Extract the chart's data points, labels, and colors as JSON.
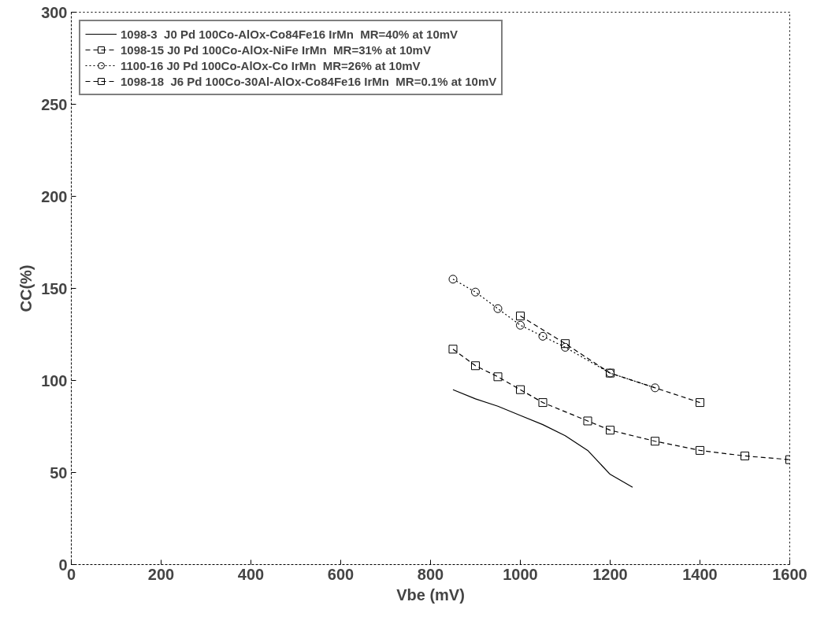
{
  "chart_data": {
    "type": "line",
    "xlabel": "Vbe (mV)",
    "ylabel": "CC(%)",
    "xlim": [
      0,
      1600
    ],
    "ylim": [
      0,
      300
    ],
    "xticks": [
      0,
      200,
      400,
      600,
      800,
      1000,
      1200,
      1400,
      1600
    ],
    "yticks": [
      0,
      50,
      100,
      150,
      200,
      250,
      300
    ],
    "grid": false,
    "legend": "top left",
    "series": [
      {
        "name": "1098-3  J0 Pd 100Co-AlOx-Co84Fe16 IrMn  MR=40% at 10mV",
        "color": "#000000",
        "line_style": "solid",
        "marker": "none",
        "x": [
          850,
          900,
          950,
          1000,
          1050,
          1100,
          1150,
          1200,
          1250
        ],
        "values": [
          95,
          90,
          86,
          81,
          76,
          70,
          62,
          49,
          42
        ]
      },
      {
        "name": "1098-15 J0 Pd 100Co-AlOx-NiFe IrMn  MR=31% at 10mV",
        "color": "#000000",
        "line_style": "dashed",
        "marker": "square",
        "x": [
          1000,
          1100,
          1200,
          1400
        ],
        "values": [
          135,
          120,
          104,
          88
        ]
      },
      {
        "name": "1100-16 J0 Pd 100Co-AlOx-Co IrMn  MR=26% at 10mV",
        "color": "#000000",
        "line_style": "dotted",
        "marker": "circle",
        "x": [
          850,
          900,
          950,
          1000,
          1050,
          1100,
          1200,
          1300
        ],
        "values": [
          155,
          148,
          139,
          130,
          124,
          118,
          104,
          96
        ]
      },
      {
        "name": "1098-18  J6 Pd 100Co-30Al-AlOx-Co84Fe16 IrMn  MR=0.1% at 10mV",
        "color": "#000000",
        "line_style": "dashed",
        "marker": "square",
        "x": [
          850,
          900,
          950,
          1000,
          1050,
          1150,
          1200,
          1300,
          1400,
          1500,
          1600
        ],
        "values": [
          117,
          108,
          102,
          95,
          88,
          78,
          73,
          67,
          62,
          59,
          57
        ]
      }
    ]
  }
}
